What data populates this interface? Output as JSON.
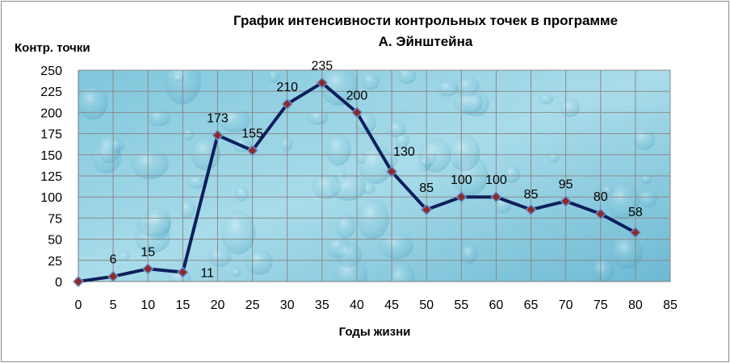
{
  "chart_data": {
    "type": "line",
    "title_lines": [
      "График интенсивности контрольных точек   в программе",
      "А. Эйнштейна"
    ],
    "ylabel": "Контр. точки",
    "xlabel": "Годы жизни",
    "x_ticks": [
      0,
      5,
      10,
      15,
      20,
      25,
      30,
      35,
      40,
      45,
      50,
      55,
      60,
      65,
      70,
      75,
      80,
      85
    ],
    "y_ticks": [
      0,
      25,
      50,
      75,
      100,
      125,
      150,
      175,
      200,
      225,
      250
    ],
    "xlim": [
      0,
      85
    ],
    "ylim": [
      0,
      250
    ],
    "grid": true,
    "series": [
      {
        "x": [
          0,
          5,
          10,
          15,
          20,
          25,
          30,
          35,
          40,
          45,
          50,
          55,
          60,
          65,
          70,
          75,
          80
        ],
        "values": [
          0,
          6,
          15,
          11,
          173,
          155,
          210,
          235,
          200,
          130,
          85,
          100,
          100,
          85,
          95,
          80,
          58
        ],
        "data_labels": [
          "",
          "6",
          "15",
          "11",
          "173",
          "155",
          "210",
          "235",
          "200",
          "130",
          "85",
          "100",
          "100",
          "85",
          "95",
          "80",
          "58"
        ],
        "line_color": "#0d1f5c",
        "marker_color": "#8b2a2a"
      }
    ],
    "background_colors": [
      "#4aa8c8",
      "#a9dcea"
    ]
  }
}
